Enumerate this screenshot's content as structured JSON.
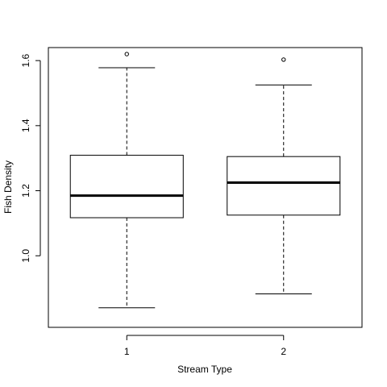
{
  "chart_data": {
    "type": "box",
    "xlabel": "Stream Type",
    "ylabel": "Fish Density",
    "categories": [
      "1",
      "2"
    ],
    "ylim": [
      0.78,
      1.64
    ],
    "yticks": [
      "1.0",
      "1.2",
      "1.4",
      "1.6"
    ],
    "boxes": [
      {
        "category": "1",
        "whisker_low": 0.84,
        "q1": 1.117,
        "median": 1.185,
        "q3": 1.309,
        "whisker_high": 1.578,
        "outliers": [
          1.62
        ]
      },
      {
        "category": "2",
        "whisker_low": 0.883,
        "q1": 1.125,
        "median": 1.225,
        "q3": 1.305,
        "whisker_high": 1.525,
        "outliers": [
          1.603
        ]
      }
    ],
    "grid": false,
    "legend": "none"
  }
}
